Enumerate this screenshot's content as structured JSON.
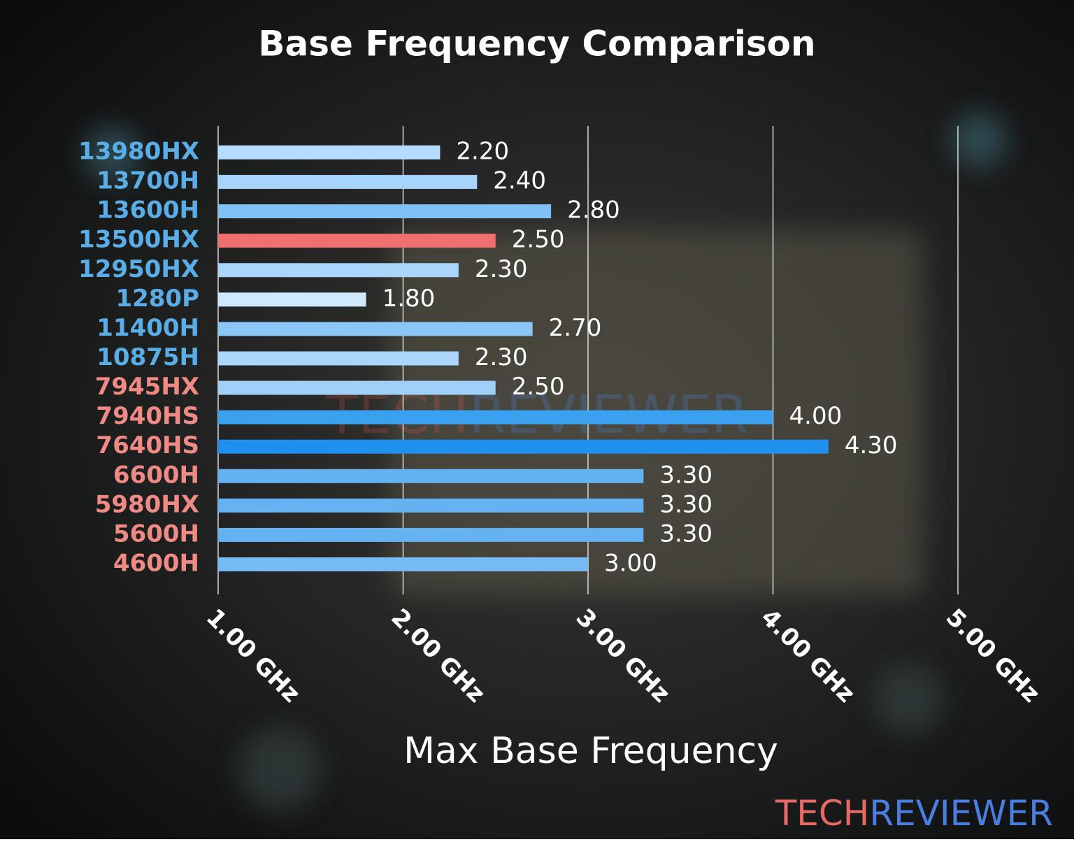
{
  "chart_data": {
    "type": "bar",
    "orientation": "horizontal",
    "title": "Base Frequency Comparison",
    "x_label": "Max Base Frequency",
    "categories": [
      "13980HX",
      "13700H",
      "13600H",
      "13500HX",
      "12950HX",
      "1280P",
      "11400H",
      "10875H",
      "7945HX",
      "7940HS",
      "7640HS",
      "6600H",
      "5980HX",
      "5600H",
      "4600H"
    ],
    "category_colors": [
      "#5aaee8",
      "#5aaee8",
      "#5aaee8",
      "#5aaee8",
      "#5aaee8",
      "#5aaee8",
      "#5aaee8",
      "#5aaee8",
      "#ef8a84",
      "#ef8a84",
      "#ef8a84",
      "#ef8a84",
      "#ef8a84",
      "#ef8a84",
      "#ef8a84"
    ],
    "values": [
      2.2,
      2.4,
      2.8,
      2.5,
      2.3,
      1.8,
      2.7,
      2.3,
      2.5,
      4.0,
      4.3,
      3.3,
      3.3,
      3.3,
      3.0
    ],
    "value_labels": [
      "2.20",
      "2.40",
      "2.80",
      "2.50",
      "2.30",
      "1.80",
      "2.70",
      "2.30",
      "2.50",
      "4.00",
      "4.30",
      "3.30",
      "3.30",
      "3.30",
      "3.00"
    ],
    "colors": [
      "#b3dcff",
      "#a6d4fb",
      "#7fc0f5",
      "#f07070",
      "#aad6fb",
      "#cfe8ff",
      "#8cc6f6",
      "#aad6fb",
      "#9fd0f8",
      "#3aa0f0",
      "#2090ee",
      "#64b2f1",
      "#64b2f1",
      "#64b2f1",
      "#76bbf3"
    ],
    "xlim": [
      1,
      5
    ],
    "xticks": [
      {
        "value": 1,
        "label": "1.00 GHz"
      },
      {
        "value": 2,
        "label": "2.00 GHz"
      },
      {
        "value": 3,
        "label": "3.00 GHz"
      },
      {
        "value": 4,
        "label": "4.00 GHz"
      },
      {
        "value": 5,
        "label": "5.00 GHz"
      }
    ],
    "grid": true,
    "watermark": [
      "TECH",
      "REVIEWER"
    ]
  }
}
